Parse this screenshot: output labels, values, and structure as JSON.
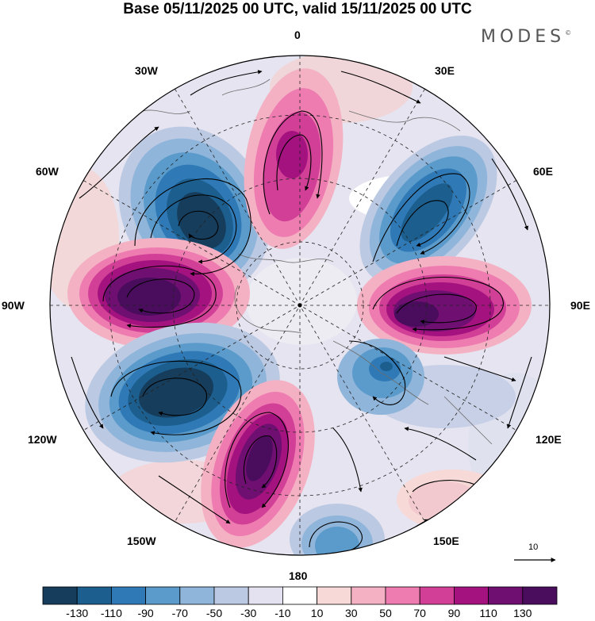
{
  "title": "Base 05/11/2025 00 UTC, valid 15/11/2025 00 UTC",
  "brand": {
    "name": "MODES",
    "mark": "©"
  },
  "longitude_labels": {
    "lon_0": "0",
    "lon_30e": "30E",
    "lon_60e": "60E",
    "lon_90e": "90E",
    "lon_120e": "120E",
    "lon_150e": "150E",
    "lon_180": "180",
    "lon_150w": "150W",
    "lon_120w": "120W",
    "lon_90w": "90W",
    "lon_60w": "60W",
    "lon_30w": "30W"
  },
  "reference_vector": {
    "label": "10"
  },
  "colorbar": {
    "colors": [
      "#163d5c",
      "#1c5e8e",
      "#2f7ab6",
      "#5b9bcb",
      "#90b5da",
      "#bcc9e3",
      "#e4e2f0",
      "#ffffff",
      "#f7d9d7",
      "#f4b1c3",
      "#ee7cb0",
      "#d13f97",
      "#a3127e",
      "#6e0f71",
      "#4a0c5c"
    ],
    "tick_labels": [
      "-130",
      "-110",
      "-90",
      "-70",
      "-50",
      "-30",
      "-10",
      "10",
      "30",
      "50",
      "70",
      "90",
      "110",
      "130"
    ]
  },
  "anomaly_centers": [
    {
      "kind": "negative",
      "approx_lon": "30W-60W"
    },
    {
      "kind": "positive",
      "approx_lon": "0-15E"
    },
    {
      "kind": "negative",
      "approx_lon": "45E-60E"
    },
    {
      "kind": "positive",
      "approx_lon": "90W"
    },
    {
      "kind": "positive",
      "approx_lon": "90E"
    },
    {
      "kind": "negative",
      "approx_lon": "120W-150W"
    },
    {
      "kind": "negative",
      "approx_lon": "120E"
    },
    {
      "kind": "positive",
      "approx_lon": "150W-180"
    },
    {
      "kind": "negative",
      "approx_lon": "170E-180"
    },
    {
      "kind": "positive",
      "approx_lon": "150E"
    }
  ]
}
